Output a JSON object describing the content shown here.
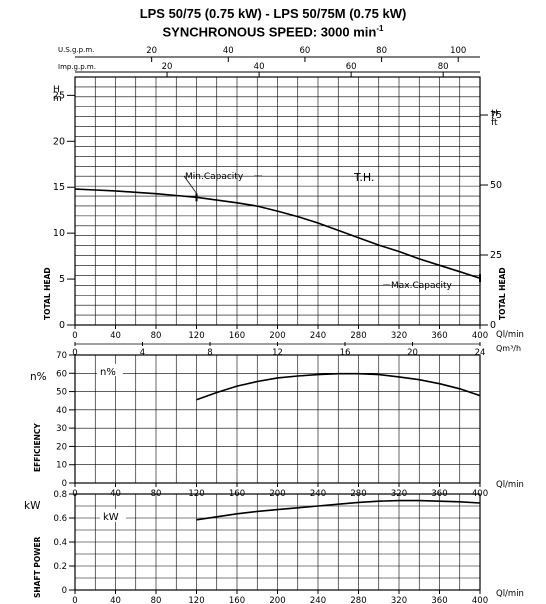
{
  "header": {
    "title": "LPS 50/75 (0.75 kW) - LPS 50/75M (0.75 kW)",
    "speed_text": "SYNCHRONOUS SPEED: 3000 min",
    "speed_exp": "-1"
  },
  "chart_data": [
    {
      "type": "line",
      "id": "head",
      "x": [
        0,
        20,
        40,
        60,
        80,
        100,
        120,
        140,
        160,
        180,
        200,
        220,
        240,
        260,
        280,
        300,
        320,
        340,
        360,
        380,
        400
      ],
      "y": [
        14.8,
        14.7,
        14.6,
        14.45,
        14.3,
        14.1,
        13.9,
        13.6,
        13.3,
        12.95,
        12.4,
        11.8,
        11.1,
        10.3,
        9.5,
        8.7,
        8.0,
        7.2,
        6.5,
        5.8,
        5.1
      ],
      "x_unit": "Ql/min",
      "xlim": [
        0,
        400
      ],
      "x_ticks": [
        "0",
        "40",
        "80",
        "120",
        "160",
        "200",
        "240",
        "280",
        "320",
        "360",
        "400"
      ],
      "y_left_label": "H",
      "y_left_unit": "m",
      "ylim": [
        0,
        27
      ],
      "y_left_ticks": [
        "0",
        "5",
        "10",
        "15",
        "20",
        "25"
      ],
      "y_right_label": "H",
      "y_right_unit": "ft",
      "y_right_ticks": [
        "0",
        "25",
        "50",
        "75"
      ],
      "y_axis_title": "TOTAL HEAD",
      "curve_label": "T.H.",
      "annotations": [
        {
          "text": "Min.Capacity",
          "x": 120,
          "y": 13.9
        },
        {
          "text": "Max.Capacity",
          "x": 400,
          "y": 5.1
        }
      ],
      "top_axes": [
        {
          "label": "U.S.g.p.m.",
          "ticks": [
            "20",
            "40",
            "60",
            "80",
            "100"
          ]
        },
        {
          "label": "Imp.g.p.m.",
          "ticks": [
            "20",
            "40",
            "60",
            "80"
          ]
        }
      ],
      "bottom_axis2": {
        "label": "Qm³/h",
        "ticks": [
          "0",
          "4",
          "8",
          "12",
          "16",
          "20",
          "24"
        ]
      },
      "grid": true
    },
    {
      "type": "line",
      "id": "efficiency",
      "x": [
        120,
        140,
        160,
        180,
        200,
        220,
        240,
        260,
        280,
        300,
        320,
        340,
        360,
        380,
        400
      ],
      "y": [
        45.5,
        49.5,
        53,
        55.5,
        57.5,
        58.5,
        59.3,
        59.8,
        59.8,
        59.3,
        58,
        56.5,
        54.3,
        51.5,
        47.8
      ],
      "x_unit": "Ql/min",
      "xlim": [
        0,
        400
      ],
      "x_ticks": [
        "0",
        "40",
        "80",
        "120",
        "160",
        "200",
        "240",
        "280",
        "320",
        "360",
        "400"
      ],
      "y_label": "n%",
      "ylim": [
        0,
        70
      ],
      "y_ticks": [
        "0",
        "10",
        "20",
        "30",
        "40",
        "50",
        "60",
        "70"
      ],
      "y_axis_title": "EFFICIENCY",
      "curve_label": "n%",
      "grid": true
    },
    {
      "type": "line",
      "id": "shaft_power",
      "x": [
        120,
        140,
        160,
        180,
        200,
        220,
        240,
        260,
        280,
        300,
        320,
        340,
        360,
        380,
        400
      ],
      "y": [
        0.585,
        0.61,
        0.635,
        0.655,
        0.67,
        0.685,
        0.7,
        0.715,
        0.73,
        0.74,
        0.745,
        0.745,
        0.74,
        0.735,
        0.725
      ],
      "x_unit": "Ql/min",
      "xlim": [
        0,
        400
      ],
      "x_ticks": [
        "0",
        "40",
        "80",
        "120",
        "160",
        "200",
        "240",
        "280",
        "320",
        "360",
        "400"
      ],
      "y_label": "kW",
      "ylim": [
        0,
        0.8
      ],
      "y_ticks": [
        "0",
        "0.2",
        "0.4",
        "0.6",
        "0.8"
      ],
      "y_axis_title": "SHAFT POWER",
      "curve_label": "kW",
      "grid": true
    }
  ]
}
